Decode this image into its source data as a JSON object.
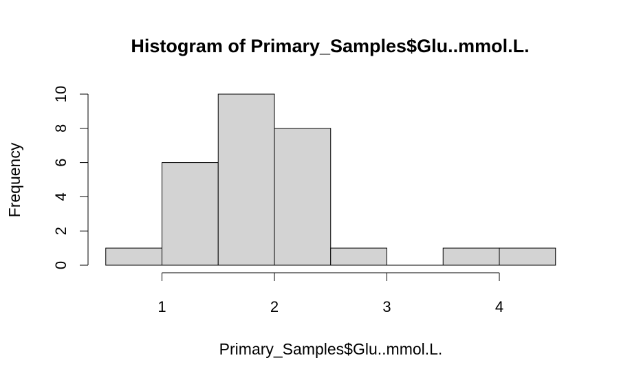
{
  "chart_data": {
    "type": "bar",
    "title": "Histogram of Primary_Samples$Glu..mmol.L.",
    "xlabel": "Primary_Samples$Glu..mmol.L.",
    "ylabel": "Frequency",
    "bins": [
      {
        "start": 0.5,
        "end": 1.0,
        "count": 1
      },
      {
        "start": 1.0,
        "end": 1.5,
        "count": 6
      },
      {
        "start": 1.5,
        "end": 2.0,
        "count": 10
      },
      {
        "start": 2.0,
        "end": 2.5,
        "count": 8
      },
      {
        "start": 2.5,
        "end": 3.0,
        "count": 1
      },
      {
        "start": 3.0,
        "end": 3.5,
        "count": 0
      },
      {
        "start": 3.5,
        "end": 4.0,
        "count": 1
      },
      {
        "start": 4.0,
        "end": 4.5,
        "count": 1
      }
    ],
    "x_ticks": [
      "1",
      "2",
      "3",
      "4"
    ],
    "y_ticks": [
      "0",
      "2",
      "4",
      "6",
      "8",
      "10"
    ],
    "xlim": [
      0.5,
      4.5
    ],
    "ylim": [
      0,
      10
    ],
    "grid": false,
    "colors": {
      "bar_fill": "#d3d3d3",
      "bar_stroke": "#000000"
    }
  }
}
